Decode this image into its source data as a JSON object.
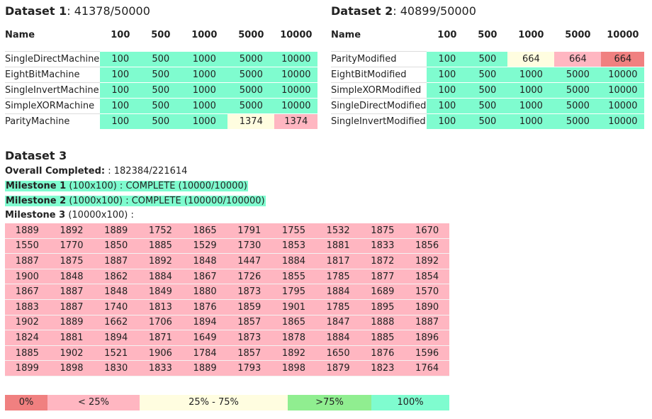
{
  "dataset1": {
    "title": "Dataset 1",
    "progress": ": 41378/50000",
    "headers": [
      "Name",
      "100",
      "500",
      "1000",
      "5000",
      "10000"
    ],
    "rows": [
      {
        "name": "SingleDirectMachine",
        "cells": [
          {
            "v": "100",
            "c": "c100"
          },
          {
            "v": "500",
            "c": "c100"
          },
          {
            "v": "1000",
            "c": "c100"
          },
          {
            "v": "5000",
            "c": "c100"
          },
          {
            "v": "10000",
            "c": "c100"
          }
        ]
      },
      {
        "name": "EightBitMachine",
        "cells": [
          {
            "v": "100",
            "c": "c100"
          },
          {
            "v": "500",
            "c": "c100"
          },
          {
            "v": "1000",
            "c": "c100"
          },
          {
            "v": "5000",
            "c": "c100"
          },
          {
            "v": "10000",
            "c": "c100"
          }
        ]
      },
      {
        "name": "SingleInvertMachine",
        "cells": [
          {
            "v": "100",
            "c": "c100"
          },
          {
            "v": "500",
            "c": "c100"
          },
          {
            "v": "1000",
            "c": "c100"
          },
          {
            "v": "5000",
            "c": "c100"
          },
          {
            "v": "10000",
            "c": "c100"
          }
        ]
      },
      {
        "name": "SimpleXORMachine",
        "cells": [
          {
            "v": "100",
            "c": "c100"
          },
          {
            "v": "500",
            "c": "c100"
          },
          {
            "v": "1000",
            "c": "c100"
          },
          {
            "v": "5000",
            "c": "c100"
          },
          {
            "v": "10000",
            "c": "c100"
          }
        ]
      },
      {
        "name": "ParityMachine",
        "cells": [
          {
            "v": "100",
            "c": "c100"
          },
          {
            "v": "500",
            "c": "c100"
          },
          {
            "v": "1000",
            "c": "c100"
          },
          {
            "v": "1374",
            "c": "c50"
          },
          {
            "v": "1374",
            "c": "c25"
          }
        ]
      }
    ]
  },
  "dataset2": {
    "title": "Dataset 2",
    "progress": ": 40899/50000",
    "headers": [
      "Name",
      "100",
      "500",
      "1000",
      "5000",
      "10000"
    ],
    "rows": [
      {
        "name": "ParityModified",
        "cells": [
          {
            "v": "100",
            "c": "c100"
          },
          {
            "v": "500",
            "c": "c100"
          },
          {
            "v": "664",
            "c": "c50"
          },
          {
            "v": "664",
            "c": "c25"
          },
          {
            "v": "664",
            "c": "c0"
          }
        ]
      },
      {
        "name": "EightBitModified",
        "cells": [
          {
            "v": "100",
            "c": "c100"
          },
          {
            "v": "500",
            "c": "c100"
          },
          {
            "v": "1000",
            "c": "c100"
          },
          {
            "v": "5000",
            "c": "c100"
          },
          {
            "v": "10000",
            "c": "c100"
          }
        ]
      },
      {
        "name": "SimpleXORModified",
        "cells": [
          {
            "v": "100",
            "c": "c100"
          },
          {
            "v": "500",
            "c": "c100"
          },
          {
            "v": "1000",
            "c": "c100"
          },
          {
            "v": "5000",
            "c": "c100"
          },
          {
            "v": "10000",
            "c": "c100"
          }
        ]
      },
      {
        "name": "SingleDirectModified",
        "cells": [
          {
            "v": "100",
            "c": "c100"
          },
          {
            "v": "500",
            "c": "c100"
          },
          {
            "v": "1000",
            "c": "c100"
          },
          {
            "v": "5000",
            "c": "c100"
          },
          {
            "v": "10000",
            "c": "c100"
          }
        ]
      },
      {
        "name": "SingleInvertModified",
        "cells": [
          {
            "v": "100",
            "c": "c100"
          },
          {
            "v": "500",
            "c": "c100"
          },
          {
            "v": "1000",
            "c": "c100"
          },
          {
            "v": "5000",
            "c": "c100"
          },
          {
            "v": "10000",
            "c": "c100"
          }
        ]
      }
    ]
  },
  "dataset3": {
    "title": "Dataset 3",
    "overall_label": "Overall Completed:",
    "overall_value": " : 182384/221614",
    "milestones": [
      {
        "label": "Milestone 1",
        "text": " (100x100) : COMPLETE (10000/10000)",
        "complete": true
      },
      {
        "label": "Milestone 2",
        "text": " (1000x100) : COMPLETE (100000/100000)",
        "complete": true
      },
      {
        "label": "Milestone 3",
        "text": " (10000x100) :",
        "complete": false
      }
    ],
    "grid": [
      [
        "1889",
        "1892",
        "1889",
        "1752",
        "1865",
        "1791",
        "1755",
        "1532",
        "1875",
        "1670"
      ],
      [
        "1550",
        "1770",
        "1850",
        "1885",
        "1529",
        "1730",
        "1853",
        "1881",
        "1833",
        "1856"
      ],
      [
        "1887",
        "1875",
        "1887",
        "1892",
        "1848",
        "1447",
        "1884",
        "1817",
        "1872",
        "1892"
      ],
      [
        "1900",
        "1848",
        "1862",
        "1884",
        "1867",
        "1726",
        "1855",
        "1785",
        "1877",
        "1854"
      ],
      [
        "1867",
        "1887",
        "1848",
        "1849",
        "1880",
        "1873",
        "1795",
        "1884",
        "1689",
        "1570"
      ],
      [
        "1883",
        "1887",
        "1740",
        "1813",
        "1876",
        "1859",
        "1901",
        "1785",
        "1895",
        "1890"
      ],
      [
        "1902",
        "1889",
        "1662",
        "1706",
        "1894",
        "1857",
        "1865",
        "1847",
        "1888",
        "1887"
      ],
      [
        "1824",
        "1881",
        "1894",
        "1871",
        "1649",
        "1873",
        "1878",
        "1884",
        "1885",
        "1896"
      ],
      [
        "1885",
        "1902",
        "1521",
        "1906",
        "1784",
        "1857",
        "1892",
        "1650",
        "1876",
        "1596"
      ],
      [
        "1899",
        "1898",
        "1830",
        "1833",
        "1889",
        "1793",
        "1898",
        "1879",
        "1823",
        "1764"
      ]
    ]
  },
  "legend": [
    {
      "label": "0%",
      "color": "#f08080"
    },
    {
      "label": "< 25%",
      "color": "#ffb6c1"
    },
    {
      "label": "25% - 75%",
      "color": "#fffde0"
    },
    {
      "label": ">75%",
      "color": "#90ee90"
    },
    {
      "label": "100%",
      "color": "#7ffccf"
    }
  ]
}
